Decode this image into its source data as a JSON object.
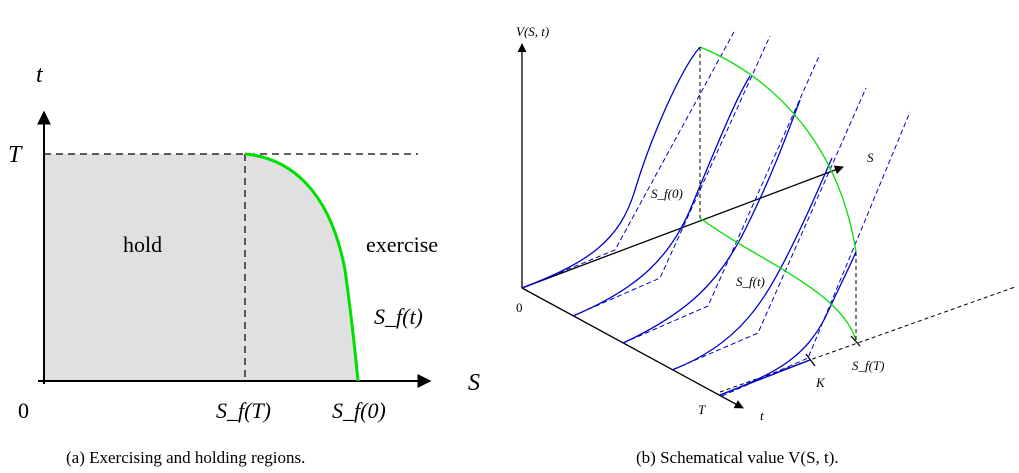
{
  "panel_a": {
    "axis_t": "t",
    "axis_S": "S",
    "tick_T": "T",
    "tick_0": "0",
    "region_hold": "hold",
    "region_exercise": "exercise",
    "curve_label": "S_f(t)",
    "tick_SfT": "S_f(T)",
    "tick_Sf0": "S_f(0)",
    "caption": "(a)  Exercising and holding regions.",
    "colors": {
      "hold_fill": "#e0e0e0",
      "boundary": "#00e000"
    }
  },
  "panel_b": {
    "axis_V": "V(S, t)",
    "axis_S": "S",
    "axis_t": "t",
    "label_0": "0",
    "label_T": "T",
    "label_K": "K",
    "label_Sf0": "S_f(0)",
    "label_Sft": "S_f(t)",
    "label_SfT": "S_f(T)",
    "caption": "(b)  Schematical value V(S, t).",
    "colors": {
      "curves": "#0000cc",
      "boundary": "#00e000"
    }
  }
}
